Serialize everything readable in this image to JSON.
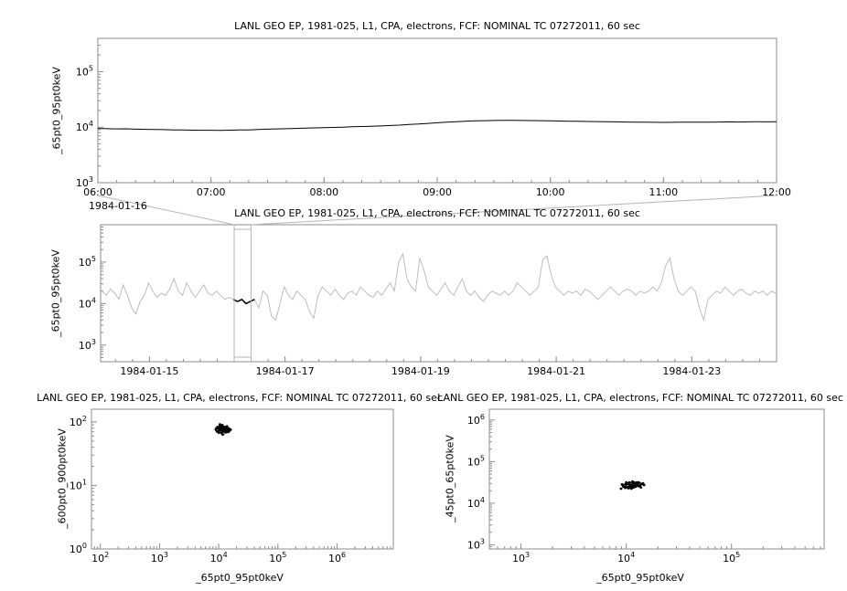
{
  "chart_data": [
    {
      "id": "top-timeseries",
      "type": "line",
      "title": "LANL GEO EP, 1981-025, L1, CPA, electrons, FCF: NOMINAL TC 07272011, 60 sec",
      "ylabel": "_65pt0_95pt0keV",
      "y_scale": "log",
      "y_tick_exponents": [
        3,
        4,
        5
      ],
      "y_range_log10": [
        3,
        5.6
      ],
      "x_context_label": "1984-01-16",
      "x_ticks": {
        "values": [
          6,
          7,
          8,
          9,
          10,
          11,
          12
        ],
        "labels": [
          "06:00",
          "07:00",
          "08:00",
          "09:00",
          "10:00",
          "11:00",
          "12:00"
        ]
      },
      "x_range": [
        6,
        12
      ],
      "line_color": "#000000",
      "series": {
        "x_start": 6,
        "x_step": 0.0833333,
        "y": [
          9500,
          9400,
          9300,
          9350,
          9200,
          9150,
          9100,
          9050,
          8950,
          8900,
          8850,
          8800,
          8800,
          8750,
          8850,
          8900,
          8950,
          9100,
          9200,
          9300,
          9400,
          9500,
          9650,
          9700,
          9800,
          9900,
          10000,
          10150,
          10300,
          10400,
          10500,
          10700,
          10900,
          11200,
          11400,
          11700,
          12000,
          12300,
          12500,
          12800,
          13000,
          13100,
          13200,
          13250,
          13300,
          13200,
          13150,
          13100,
          13000,
          12900,
          12800,
          12750,
          12650,
          12600,
          12500,
          12450,
          12400,
          12350,
          12300,
          12250,
          12200,
          12250,
          12300,
          12350,
          12300,
          12350,
          12400,
          12450,
          12400,
          12450,
          12500,
          12450,
          12500
        ]
      }
    },
    {
      "id": "context-timeseries",
      "type": "line",
      "title": "LANL GEO EP, 1981-025, L1, CPA, electrons, FCF: NOMINAL TC 07272011, 60 sec",
      "ylabel": "_65pt0_95pt0keV",
      "y_scale": "log",
      "y_tick_exponents": [
        3,
        4,
        5
      ],
      "y_range_log10": [
        2.6,
        5.9
      ],
      "x_ticks": {
        "values": [
          15,
          17,
          19,
          21,
          23
        ],
        "labels": [
          "1984-01-15",
          "1984-01-17",
          "1984-01-19",
          "1984-01-21",
          "1984-01-23"
        ]
      },
      "x_range": [
        14.28,
        24.25
      ],
      "line_color": "#bdbdbd",
      "highlight_color": "#000000",
      "selection": {
        "x_start": 16.25,
        "x_end": 16.5
      },
      "series": {
        "x_start": 14.3,
        "x_step": 0.0625,
        "y_log10": [
          4.3,
          4.2,
          4.35,
          4.25,
          4.1,
          4.45,
          4.2,
          3.9,
          3.75,
          4.05,
          4.2,
          4.5,
          4.3,
          4.15,
          4.25,
          4.2,
          4.35,
          4.6,
          4.3,
          4.2,
          4.5,
          4.3,
          4.15,
          4.3,
          4.45,
          4.25,
          4.2,
          4.3,
          4.2,
          4.1,
          4.15,
          4.1,
          4.05,
          4.1,
          4.0,
          4.05,
          4.1,
          3.9,
          4.3,
          4.2,
          3.7,
          3.6,
          4.0,
          4.4,
          4.2,
          4.1,
          4.3,
          4.2,
          4.1,
          3.8,
          3.65,
          4.2,
          4.4,
          4.3,
          4.2,
          4.35,
          4.2,
          4.1,
          4.25,
          4.3,
          4.2,
          4.4,
          4.3,
          4.2,
          4.15,
          4.3,
          4.2,
          4.35,
          4.5,
          4.3,
          5.0,
          5.2,
          4.6,
          4.4,
          4.3,
          5.1,
          4.8,
          4.4,
          4.3,
          4.2,
          4.35,
          4.5,
          4.3,
          4.2,
          4.4,
          4.6,
          4.3,
          4.2,
          4.3,
          4.15,
          4.05,
          4.2,
          4.3,
          4.25,
          4.2,
          4.3,
          4.2,
          4.3,
          4.5,
          4.4,
          4.3,
          4.2,
          4.3,
          4.4,
          5.05,
          5.15,
          4.7,
          4.4,
          4.3,
          4.2,
          4.3,
          4.25,
          4.3,
          4.2,
          4.35,
          4.3,
          4.2,
          4.1,
          4.2,
          4.3,
          4.4,
          4.3,
          4.2,
          4.3,
          4.35,
          4.3,
          4.2,
          4.3,
          4.25,
          4.3,
          4.4,
          4.3,
          4.5,
          4.9,
          5.1,
          4.6,
          4.3,
          4.2,
          4.3,
          4.4,
          4.3,
          3.9,
          3.6,
          4.1,
          4.2,
          4.3,
          4.25,
          4.4,
          4.3,
          4.2,
          4.3,
          4.35,
          4.25,
          4.2,
          4.3,
          4.25,
          4.3,
          4.2,
          4.3,
          4.25
        ]
      }
    },
    {
      "id": "scatter-600-900",
      "type": "scatter",
      "title": "LANL GEO EP, 1981-025, L1, CPA, electrons, FCF: NOMINAL TC 07272011, 60 sec",
      "xlabel": "_65pt0_95pt0keV",
      "ylabel": "_600pt0_900pt0keV",
      "x_scale": "log",
      "y_scale": "log",
      "x_tick_exponents": [
        2,
        3,
        4,
        5,
        6
      ],
      "y_tick_exponents": [
        0,
        1,
        2
      ],
      "x_range_log10": [
        1.85,
        6.95
      ],
      "y_range_log10": [
        0,
        2.2
      ],
      "marker_color": "#000000",
      "points_log10": [
        [
          3.95,
          1.88
        ],
        [
          3.98,
          1.92
        ],
        [
          4.0,
          1.9
        ],
        [
          4.02,
          1.94
        ],
        [
          4.05,
          1.9
        ],
        [
          4.07,
          1.88
        ],
        [
          4.1,
          1.92
        ],
        [
          4.12,
          1.9
        ],
        [
          4.15,
          1.88
        ],
        [
          4.08,
          1.85
        ],
        [
          4.03,
          1.87
        ],
        [
          3.97,
          1.85
        ],
        [
          4.0,
          1.83
        ],
        [
          4.05,
          1.82
        ],
        [
          4.1,
          1.85
        ],
        [
          4.13,
          1.87
        ],
        [
          4.17,
          1.9
        ],
        [
          4.2,
          1.88
        ],
        [
          4.06,
          1.95
        ],
        [
          4.02,
          1.96
        ],
        [
          3.99,
          1.9
        ],
        [
          4.04,
          1.89
        ],
        [
          4.09,
          1.91
        ],
        [
          4.11,
          1.86
        ],
        [
          4.16,
          1.84
        ],
        [
          4.07,
          1.8
        ],
        [
          4.0,
          1.86
        ],
        [
          4.05,
          1.93
        ],
        [
          4.14,
          1.93
        ],
        [
          4.18,
          1.86
        ],
        [
          3.96,
          1.9
        ],
        [
          4.01,
          1.91
        ],
        [
          4.08,
          1.89
        ],
        [
          4.12,
          1.84
        ],
        [
          4.05,
          1.86
        ]
      ]
    },
    {
      "id": "scatter-45-65",
      "type": "scatter",
      "title": "LANL GEO EP, 1981-025, L1, CPA, electrons, FCF: NOMINAL TC 07272011, 60 sec",
      "xlabel": "_65pt0_95pt0keV",
      "ylabel": "_45pt0_65pt0keV",
      "x_scale": "log",
      "y_scale": "log",
      "x_tick_exponents": [
        3,
        4,
        5
      ],
      "y_tick_exponents": [
        3,
        4,
        5,
        6
      ],
      "x_range_log10": [
        2.7,
        5.88
      ],
      "y_range_log10": [
        2.9,
        6.26
      ],
      "marker_color": "#000000",
      "points_log10": [
        [
          3.95,
          4.35
        ],
        [
          3.98,
          4.4
        ],
        [
          4.0,
          4.45
        ],
        [
          4.03,
          4.5
        ],
        [
          4.05,
          4.42
        ],
        [
          4.08,
          4.47
        ],
        [
          4.1,
          4.44
        ],
        [
          4.12,
          4.5
        ],
        [
          4.15,
          4.46
        ],
        [
          4.07,
          4.38
        ],
        [
          4.02,
          4.36
        ],
        [
          3.97,
          4.42
        ],
        [
          4.0,
          4.5
        ],
        [
          4.04,
          4.44
        ],
        [
          4.09,
          4.4
        ],
        [
          4.13,
          4.42
        ],
        [
          4.16,
          4.48
        ],
        [
          4.06,
          4.52
        ],
        [
          4.01,
          4.47
        ],
        [
          3.99,
          4.37
        ],
        [
          4.05,
          4.35
        ],
        [
          4.1,
          4.5
        ],
        [
          4.14,
          4.38
        ],
        [
          4.08,
          4.43
        ],
        [
          4.03,
          4.41
        ],
        [
          4.0,
          4.39
        ],
        [
          4.06,
          4.46
        ],
        [
          4.11,
          4.47
        ],
        [
          4.17,
          4.44
        ],
        [
          3.96,
          4.45
        ],
        [
          4.02,
          4.48
        ],
        [
          4.07,
          4.5
        ],
        [
          4.12,
          4.41
        ],
        [
          4.04,
          4.37
        ],
        [
          4.09,
          4.45
        ]
      ]
    }
  ],
  "colors": {
    "frame": "#8c8c8c",
    "connector": "#b4b4b4",
    "foreground": "#000000",
    "context_series": "#bdbdbd",
    "background": "#ffffff"
  }
}
